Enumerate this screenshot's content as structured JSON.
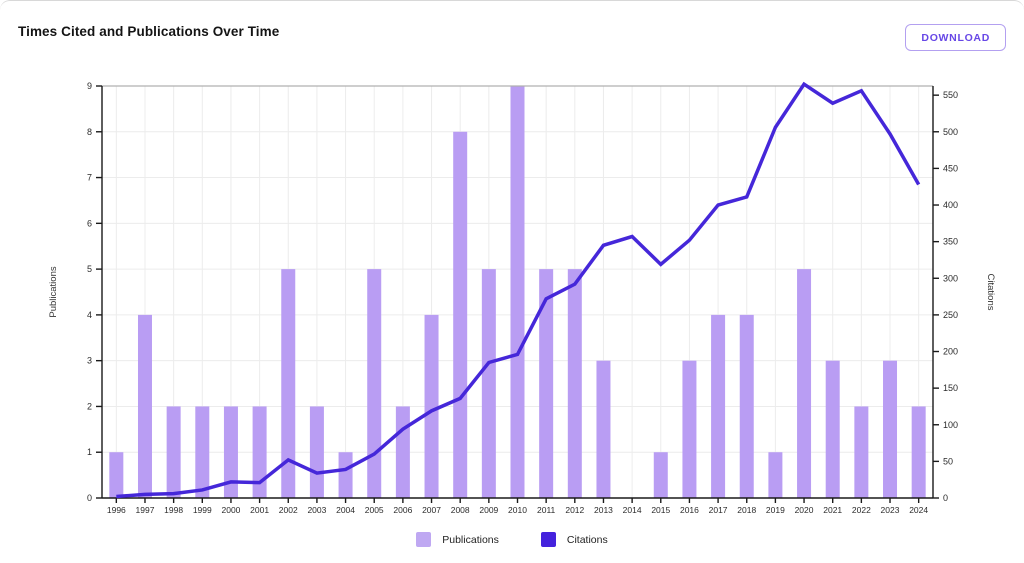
{
  "header": {
    "title": "Times Cited and Publications Over Time",
    "download_label": "DOWNLOAD"
  },
  "colors": {
    "bar": "#b99df3",
    "bar_legend_swatch": "#bfa8f2",
    "line": "#4527d9",
    "line_legend_swatch": "#4422dd",
    "grid": "#ececec",
    "spine": "#1a1a1a",
    "top_spine": "#b0b0b0",
    "tick_label": "#2b2b2b",
    "axis_title": "#333333"
  },
  "chart_data": {
    "type": "bar+line combo",
    "title": "Times Cited and Publications Over Time",
    "grid": true,
    "legend_position": "bottom",
    "categories": [
      "1996",
      "1997",
      "1998",
      "1999",
      "2000",
      "2001",
      "2002",
      "2003",
      "2004",
      "2005",
      "2006",
      "2007",
      "2008",
      "2009",
      "2010",
      "2011",
      "2012",
      "2013",
      "2014",
      "2015",
      "2016",
      "2017",
      "2018",
      "2019",
      "2020",
      "2021",
      "2022",
      "2023",
      "2024"
    ],
    "series": [
      {
        "name": "Publications",
        "type": "bar",
        "axis": "left",
        "values": [
          1,
          4,
          2,
          2,
          2,
          2,
          5,
          2,
          1,
          5,
          2,
          4,
          8,
          5,
          9,
          5,
          5,
          3,
          0,
          1,
          3,
          4,
          4,
          1,
          5,
          3,
          2,
          3,
          2
        ]
      },
      {
        "name": "Citations",
        "type": "line",
        "axis": "right",
        "values": [
          2,
          5,
          6,
          11,
          22,
          21,
          52,
          34,
          39,
          60,
          94,
          119,
          136,
          185,
          196,
          272,
          292,
          345,
          357,
          319,
          352,
          400,
          411,
          506,
          565,
          539,
          556,
          497,
          428
        ]
      }
    ],
    "left_axis": {
      "label": "Publications",
      "min": 0,
      "max": 9,
      "tick_step": 1
    },
    "right_axis": {
      "label": "Citations",
      "min": 0,
      "max": 562.5,
      "tick_step": 50,
      "tick_max": 550
    }
  }
}
